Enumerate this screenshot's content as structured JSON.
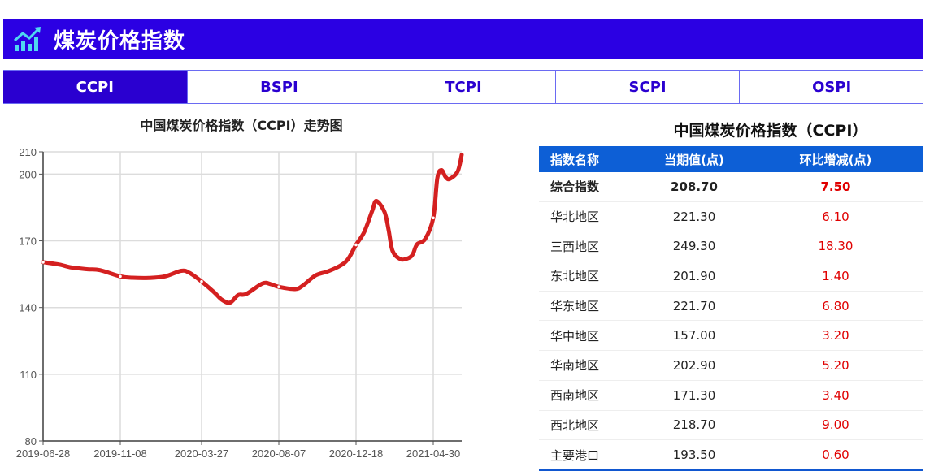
{
  "header": {
    "title": "煤炭价格指数",
    "icon": "bar-chart-trend-icon"
  },
  "tabs": [
    {
      "label": "CCPI",
      "active": true
    },
    {
      "label": "BSPI",
      "active": false
    },
    {
      "label": "TCPI",
      "active": false
    },
    {
      "label": "SCPI",
      "active": false
    },
    {
      "label": "OSPI",
      "active": false
    }
  ],
  "chart_data": {
    "type": "line",
    "title": "中国煤炭价格指数（CCPI）走势图",
    "xlabel": "",
    "ylabel": "",
    "ylim": [
      80,
      210
    ],
    "y_ticks": [
      "80",
      "110",
      "140",
      "170",
      "200",
      "210"
    ],
    "x_ticks": [
      "2019-06-28",
      "2019-11-08",
      "2020-03-27",
      "2020-08-07",
      "2020-12-18",
      "2021-04-30"
    ],
    "grid": true,
    "line_color": "#d42020",
    "x": [
      "2019-06-28",
      "2019-07-26",
      "2019-08-16",
      "2019-09-13",
      "2019-10-04",
      "2019-11-08",
      "2019-11-29",
      "2019-12-27",
      "2020-01-24",
      "2020-02-21",
      "2020-03-06",
      "2020-03-27",
      "2020-04-17",
      "2020-05-01",
      "2020-05-15",
      "2020-05-29",
      "2020-06-12",
      "2020-07-10",
      "2020-07-24",
      "2020-08-07",
      "2020-09-04",
      "2020-09-18",
      "2020-10-09",
      "2020-10-30",
      "2020-11-20",
      "2020-12-04",
      "2020-12-18",
      "2021-01-01",
      "2021-01-15",
      "2021-01-22",
      "2021-02-05",
      "2021-02-12",
      "2021-02-19",
      "2021-03-05",
      "2021-03-19",
      "2021-03-26",
      "2021-04-02",
      "2021-04-16",
      "2021-04-30",
      "2021-05-07",
      "2021-05-14",
      "2021-05-21",
      "2021-05-28",
      "2021-06-11",
      "2021-06-18"
    ],
    "values": [
      160.4,
      159.3,
      158,
      157.2,
      156.8,
      154,
      153.4,
      153.3,
      154,
      156.5,
      155.6,
      151.7,
      147,
      143.5,
      142.2,
      145.6,
      146.1,
      150.8,
      150.5,
      149.3,
      148.3,
      150,
      154.4,
      156.2,
      158.7,
      161.7,
      168.2,
      173.9,
      183.6,
      187.9,
      183,
      175,
      165.4,
      161.7,
      162.3,
      164.1,
      168.4,
      170.8,
      180.3,
      198.2,
      201.8,
      198.8,
      197.8,
      201.2,
      208.7
    ]
  },
  "table": {
    "title": "中国煤炭价格指数（CCPI）",
    "columns": [
      "指数名称",
      "当期值(点)",
      "环比增减(点)"
    ],
    "rows": [
      {
        "name": "综合指数",
        "value": "208.70",
        "change": "7.50"
      },
      {
        "name": "华北地区",
        "value": "221.30",
        "change": "6.10"
      },
      {
        "name": "三西地区",
        "value": "249.30",
        "change": "18.30"
      },
      {
        "name": "东北地区",
        "value": "201.90",
        "change": "1.40"
      },
      {
        "name": "华东地区",
        "value": "221.70",
        "change": "6.80"
      },
      {
        "name": "华中地区",
        "value": "157.00",
        "change": "3.20"
      },
      {
        "name": "华南地区",
        "value": "202.90",
        "change": "5.20"
      },
      {
        "name": "西南地区",
        "value": "171.30",
        "change": "3.40"
      },
      {
        "name": "西北地区",
        "value": "218.70",
        "change": "9.00"
      },
      {
        "name": "主要港口",
        "value": "193.50",
        "change": "0.60"
      }
    ]
  }
}
